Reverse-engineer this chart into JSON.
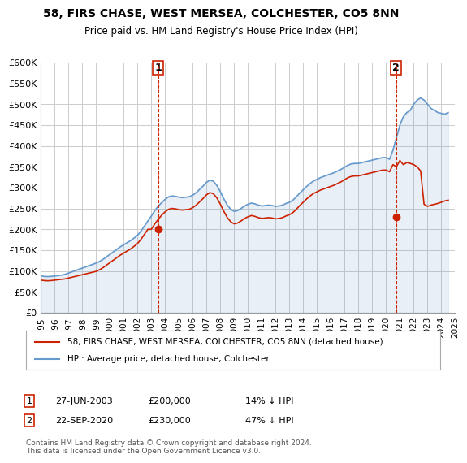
{
  "title": "58, FIRS CHASE, WEST MERSEA, COLCHESTER, CO5 8NN",
  "subtitle": "Price paid vs. HM Land Registry's House Price Index (HPI)",
  "ylabel_ticks": [
    "£0",
    "£50K",
    "£100K",
    "£150K",
    "£200K",
    "£250K",
    "£300K",
    "£350K",
    "£400K",
    "£450K",
    "£500K",
    "£550K",
    "£600K"
  ],
  "ylim": [
    0,
    600000
  ],
  "ytick_vals": [
    0,
    50000,
    100000,
    150000,
    200000,
    250000,
    300000,
    350000,
    400000,
    450000,
    500000,
    550000,
    600000
  ],
  "hpi_color": "#6699cc",
  "price_color": "#cc2200",
  "marker1_date_idx": 8.5,
  "marker1_price": 200000,
  "marker1_label": "1",
  "marker2_date_idx": 25.75,
  "marker2_price": 230000,
  "marker2_label": "2",
  "hpi_x": [
    1995.0,
    1995.25,
    1995.5,
    1995.75,
    1996.0,
    1996.25,
    1996.5,
    1996.75,
    1997.0,
    1997.25,
    1997.5,
    1997.75,
    1998.0,
    1998.25,
    1998.5,
    1998.75,
    1999.0,
    1999.25,
    1999.5,
    1999.75,
    2000.0,
    2000.25,
    2000.5,
    2000.75,
    2001.0,
    2001.25,
    2001.5,
    2001.75,
    2002.0,
    2002.25,
    2002.5,
    2002.75,
    2003.0,
    2003.25,
    2003.5,
    2003.75,
    2004.0,
    2004.25,
    2004.5,
    2004.75,
    2005.0,
    2005.25,
    2005.5,
    2005.75,
    2006.0,
    2006.25,
    2006.5,
    2006.75,
    2007.0,
    2007.25,
    2007.5,
    2007.75,
    2008.0,
    2008.25,
    2008.5,
    2008.75,
    2009.0,
    2009.25,
    2009.5,
    2009.75,
    2010.0,
    2010.25,
    2010.5,
    2010.75,
    2011.0,
    2011.25,
    2011.5,
    2011.75,
    2012.0,
    2012.25,
    2012.5,
    2012.75,
    2013.0,
    2013.25,
    2013.5,
    2013.75,
    2014.0,
    2014.25,
    2014.5,
    2014.75,
    2015.0,
    2015.25,
    2015.5,
    2015.75,
    2016.0,
    2016.25,
    2016.5,
    2016.75,
    2017.0,
    2017.25,
    2017.5,
    2017.75,
    2018.0,
    2018.25,
    2018.5,
    2018.75,
    2019.0,
    2019.25,
    2019.5,
    2019.75,
    2020.0,
    2020.25,
    2020.5,
    2020.75,
    2021.0,
    2021.25,
    2021.5,
    2021.75,
    2022.0,
    2022.25,
    2022.5,
    2022.75,
    2023.0,
    2023.25,
    2023.5,
    2023.75,
    2024.0,
    2024.25,
    2024.5
  ],
  "hpi_y": [
    88000,
    87000,
    86500,
    87000,
    88000,
    89000,
    90000,
    92000,
    95000,
    98000,
    101000,
    104000,
    107000,
    110000,
    113000,
    116000,
    119000,
    123000,
    128000,
    134000,
    140000,
    146000,
    152000,
    158000,
    163000,
    168000,
    173000,
    179000,
    186000,
    196000,
    208000,
    220000,
    232000,
    245000,
    256000,
    264000,
    272000,
    278000,
    280000,
    279000,
    277000,
    276000,
    277000,
    278000,
    282000,
    288000,
    296000,
    304000,
    313000,
    318000,
    315000,
    305000,
    290000,
    273000,
    258000,
    248000,
    243000,
    245000,
    250000,
    256000,
    260000,
    263000,
    261000,
    258000,
    256000,
    257000,
    258000,
    257000,
    255000,
    256000,
    258000,
    262000,
    265000,
    270000,
    278000,
    287000,
    295000,
    303000,
    310000,
    316000,
    320000,
    324000,
    327000,
    330000,
    333000,
    336000,
    340000,
    344000,
    349000,
    354000,
    357000,
    358000,
    358000,
    360000,
    362000,
    364000,
    366000,
    368000,
    370000,
    372000,
    372000,
    368000,
    390000,
    420000,
    450000,
    470000,
    480000,
    485000,
    500000,
    510000,
    515000,
    510000,
    500000,
    490000,
    485000,
    480000,
    478000,
    476000,
    480000
  ],
  "price_x": [
    1995.0,
    1995.25,
    1995.5,
    1995.75,
    1996.0,
    1996.25,
    1996.5,
    1996.75,
    1997.0,
    1997.25,
    1997.5,
    1997.75,
    1998.0,
    1998.25,
    1998.5,
    1998.75,
    1999.0,
    1999.25,
    1999.5,
    1999.75,
    2000.0,
    2000.25,
    2000.5,
    2000.75,
    2001.0,
    2001.25,
    2001.5,
    2001.75,
    2002.0,
    2002.25,
    2002.5,
    2002.75,
    2003.0,
    2003.25,
    2003.5,
    2003.75,
    2004.0,
    2004.25,
    2004.5,
    2004.75,
    2005.0,
    2005.25,
    2005.5,
    2005.75,
    2006.0,
    2006.25,
    2006.5,
    2006.75,
    2007.0,
    2007.25,
    2007.5,
    2007.75,
    2008.0,
    2008.25,
    2008.5,
    2008.75,
    2009.0,
    2009.25,
    2009.5,
    2009.75,
    2010.0,
    2010.25,
    2010.5,
    2010.75,
    2011.0,
    2011.25,
    2011.5,
    2011.75,
    2012.0,
    2012.25,
    2012.5,
    2012.75,
    2013.0,
    2013.25,
    2013.5,
    2013.75,
    2014.0,
    2014.25,
    2014.5,
    2014.75,
    2015.0,
    2015.25,
    2015.5,
    2015.75,
    2016.0,
    2016.25,
    2016.5,
    2016.75,
    2017.0,
    2017.25,
    2017.5,
    2017.75,
    2018.0,
    2018.25,
    2018.5,
    2018.75,
    2019.0,
    2019.25,
    2019.5,
    2019.75,
    2020.0,
    2020.25,
    2020.5,
    2020.75,
    2021.0,
    2021.25,
    2021.5,
    2021.75,
    2022.0,
    2022.25,
    2022.5,
    2022.75,
    2023.0,
    2023.25,
    2023.5,
    2023.75,
    2024.0,
    2024.25,
    2024.5
  ],
  "price_y": [
    78000,
    77000,
    76500,
    77000,
    78000,
    79000,
    80000,
    81000,
    83000,
    85000,
    87000,
    89000,
    91000,
    93000,
    95000,
    97000,
    99000,
    103000,
    108000,
    114000,
    120000,
    126000,
    132000,
    138000,
    143000,
    148000,
    153000,
    159000,
    166000,
    176000,
    188000,
    200000,
    200000,
    213000,
    224000,
    234000,
    242000,
    248000,
    250000,
    249000,
    247000,
    246000,
    247000,
    248000,
    252000,
    258000,
    266000,
    274000,
    283000,
    288000,
    285000,
    275000,
    260000,
    243000,
    228000,
    218000,
    213000,
    215000,
    220000,
    226000,
    230000,
    233000,
    231000,
    228000,
    226000,
    227000,
    228000,
    227000,
    225000,
    226000,
    228000,
    232000,
    235000,
    240000,
    248000,
    257000,
    265000,
    273000,
    280000,
    286000,
    290000,
    294000,
    297000,
    300000,
    303000,
    306000,
    310000,
    314000,
    319000,
    324000,
    327000,
    328000,
    328000,
    330000,
    332000,
    334000,
    336000,
    338000,
    340000,
    342000,
    342000,
    338000,
    355000,
    350000,
    365000,
    355000,
    360000,
    358000,
    355000,
    350000,
    340000,
    260000,
    255000,
    258000,
    260000,
    262000,
    265000,
    268000,
    270000
  ],
  "legend_label1": "58, FIRS CHASE, WEST MERSEA, COLCHESTER, CO5 8NN (detached house)",
  "legend_label2": "HPI: Average price, detached house, Colchester",
  "footnote": "Contains HM Land Registry data © Crown copyright and database right 2024.\nThis data is licensed under the Open Government Licence v3.0.",
  "table_row1": [
    "1",
    "27-JUN-2003",
    "£200,000",
    "14% ↓ HPI"
  ],
  "table_row2": [
    "2",
    "22-SEP-2020",
    "£230,000",
    "47% ↓ HPI"
  ],
  "bg_color": "#ffffff",
  "grid_color": "#cccccc",
  "xlim": [
    1995,
    2025
  ]
}
